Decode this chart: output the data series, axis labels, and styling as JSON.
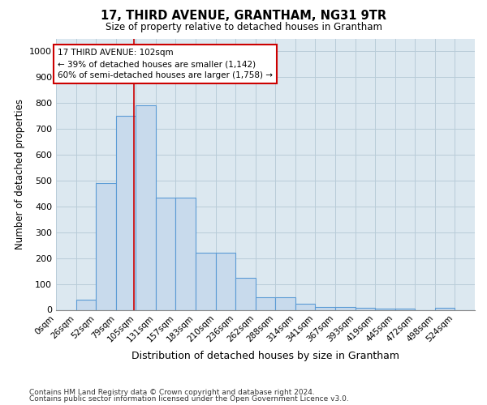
{
  "title": "17, THIRD AVENUE, GRANTHAM, NG31 9TR",
  "subtitle": "Size of property relative to detached houses in Grantham",
  "xlabel": "Distribution of detached houses by size in Grantham",
  "ylabel": "Number of detached properties",
  "bar_labels": [
    "0sqm",
    "26sqm",
    "52sqm",
    "79sqm",
    "105sqm",
    "131sqm",
    "157sqm",
    "183sqm",
    "210sqm",
    "236sqm",
    "262sqm",
    "288sqm",
    "314sqm",
    "341sqm",
    "367sqm",
    "393sqm",
    "419sqm",
    "445sqm",
    "472sqm",
    "498sqm",
    "524sqm"
  ],
  "bar_values": [
    0,
    40,
    490,
    750,
    790,
    435,
    435,
    220,
    220,
    125,
    50,
    50,
    25,
    12,
    10,
    8,
    5,
    5,
    0,
    8,
    0
  ],
  "bar_color": "#c8daec",
  "bar_edge_color": "#5b9bd5",
  "red_line_x": 102,
  "bin_width": 26,
  "red_line_color": "#cc0000",
  "annotation_box_text": "17 THIRD AVENUE: 102sqm\n← 39% of detached houses are smaller (1,142)\n60% of semi-detached houses are larger (1,758) →",
  "annotation_box_color": "#ffffff",
  "annotation_box_edge_color": "#cc0000",
  "ylim": [
    0,
    1050
  ],
  "yticks": [
    0,
    100,
    200,
    300,
    400,
    500,
    600,
    700,
    800,
    900,
    1000
  ],
  "grid_color": "#b8ccd8",
  "background_color": "#dce8f0",
  "footnote1": "Contains HM Land Registry data © Crown copyright and database right 2024.",
  "footnote2": "Contains public sector information licensed under the Open Government Licence v3.0."
}
